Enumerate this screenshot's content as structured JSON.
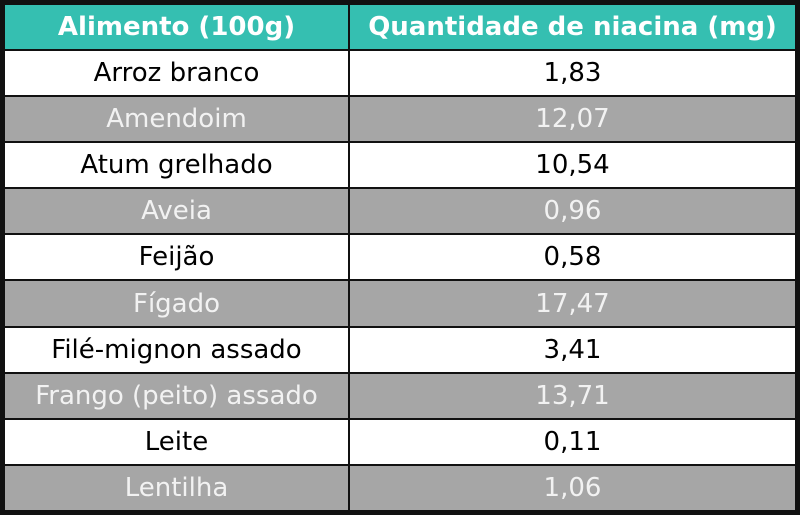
{
  "table": {
    "header": [
      "Alimento (100g)",
      "Quantidade de niacina (mg)"
    ],
    "rows": [
      [
        "Arroz branco",
        "1,83"
      ],
      [
        "Amendoim",
        "12,07"
      ],
      [
        "Atum grelhado",
        "10,54"
      ],
      [
        "Aveia",
        "0,96"
      ],
      [
        "Feijão",
        "0,58"
      ],
      [
        "Fígado",
        "17,47"
      ],
      [
        "Filé-mignon assado",
        "3,41"
      ],
      [
        "Frango (peito) assado",
        "13,71"
      ],
      [
        "Leite",
        "0,11"
      ],
      [
        "Lentilha",
        "1,06"
      ]
    ]
  }
}
